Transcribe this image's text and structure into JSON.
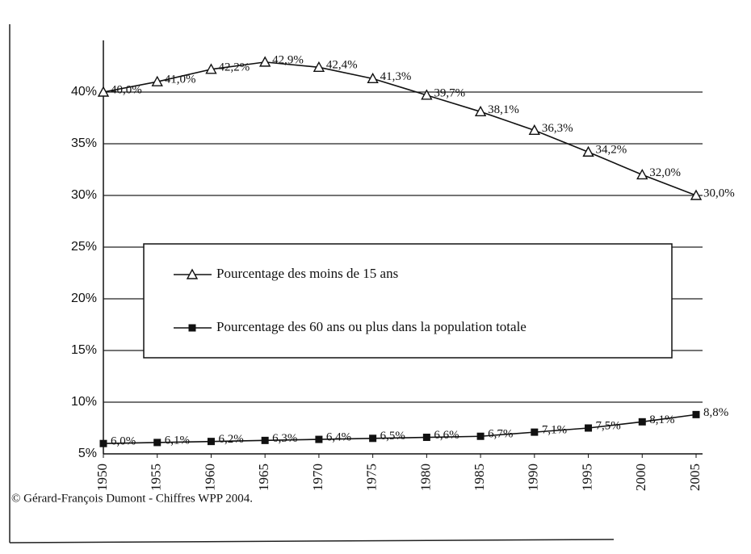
{
  "chart_data": {
    "type": "line",
    "categories": [
      "1950",
      "1955",
      "1960",
      "1965",
      "1970",
      "1975",
      "1980",
      "1985",
      "1990",
      "1995",
      "2000",
      "2005"
    ],
    "series": [
      {
        "name": "Pourcentage des moins de 15 ans",
        "color": "#111111",
        "marker": "triangle",
        "values": [
          40.0,
          41.0,
          42.2,
          42.9,
          42.4,
          41.3,
          39.7,
          38.1,
          36.3,
          34.2,
          32.0,
          30.0
        ],
        "value_labels": [
          "40,0%",
          "41,0%",
          "42,2%",
          "42,9%",
          "42,4%",
          "41,3%",
          "39,7%",
          "38,1%",
          "36,3%",
          "34,2%",
          "32,0%",
          "30,0%"
        ]
      },
      {
        "name": "Pourcentage des 60 ans ou plus dans la population totale",
        "color": "#111111",
        "marker": "square",
        "values": [
          6.0,
          6.1,
          6.2,
          6.3,
          6.4,
          6.5,
          6.6,
          6.7,
          7.1,
          7.5,
          8.1,
          8.8
        ],
        "value_labels": [
          "6,0%",
          "6,1%",
          "6,2%",
          "6,3%",
          "6,4%",
          "6,5%",
          "6,6%",
          "6,7%",
          "7,1%",
          "7,5%",
          "8,1%",
          "8,8%"
        ]
      }
    ],
    "ylim": [
      5,
      45
    ],
    "yticks": [
      {
        "value": 5,
        "label": "5%"
      },
      {
        "value": 10,
        "label": "10%"
      },
      {
        "value": 15,
        "label": "15%"
      },
      {
        "value": 20,
        "label": "20%"
      },
      {
        "value": 25,
        "label": "25%"
      },
      {
        "value": 30,
        "label": "30%"
      },
      {
        "value": 35,
        "label": "35%"
      },
      {
        "value": 40,
        "label": "40%"
      }
    ],
    "grid": true,
    "source": "© Gérard-François Dumont - Chiffres WPP 2004."
  }
}
